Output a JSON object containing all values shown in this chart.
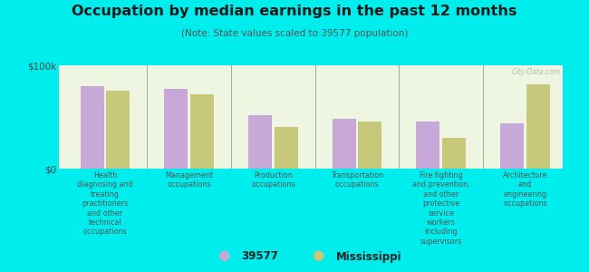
{
  "title": "Occupation by median earnings in the past 12 months",
  "subtitle": "(Note: State values scaled to 39577 population)",
  "background_color": "#00eded",
  "plot_bg_color": "#eef5e0",
  "bar_color_39577": "#c8a8d8",
  "bar_color_ms": "#c8c87a",
  "categories": [
    "Health\ndiagnosing and\ntreating\npractitioners\nand other\ntechnical\noccupations",
    "Management\noccupations",
    "Production\noccupations",
    "Transportation\noccupations",
    "Fire fighting\nand prevention,\nand other\nprotective\nservice\nworkers\nincluding\nsupervisors",
    "Architecture\nand\nengineering\noccupations"
  ],
  "values_39577": [
    80000,
    77000,
    52000,
    48000,
    46000,
    44000
  ],
  "values_ms": [
    75000,
    72000,
    40000,
    46000,
    30000,
    82000
  ],
  "ymax": 100000,
  "yticks": [
    0,
    100000
  ],
  "ytick_labels": [
    "$0",
    "$100k"
  ],
  "legend_label_39577": "39577",
  "legend_label_ms": "Mississippi",
  "watermark": "City-Data.com",
  "title_color": "#1a1a1a",
  "subtitle_color": "#555555",
  "xlabel_color": "#555555"
}
